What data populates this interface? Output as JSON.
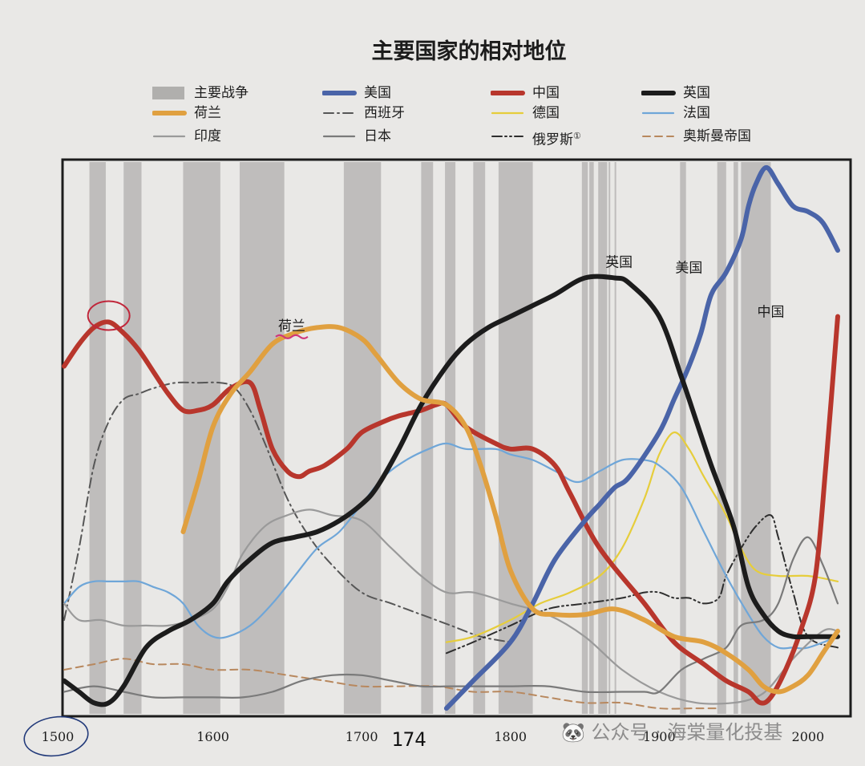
{
  "chart_data": {
    "type": "line",
    "title": "主要国家的相对地位",
    "xlim": [
      1500,
      2020
    ],
    "ylim": [
      0,
      1
    ],
    "x_ticks": [
      1500,
      1600,
      1700,
      1800,
      1900,
      2000
    ],
    "handwritten_note": "174",
    "war_periods": [
      [
        1517,
        1528
      ],
      [
        1540,
        1552
      ],
      [
        1580,
        1605
      ],
      [
        1618,
        1648
      ],
      [
        1688,
        1713
      ],
      [
        1740,
        1748
      ],
      [
        1756,
        1763
      ],
      [
        1775,
        1783
      ],
      [
        1792,
        1815
      ],
      [
        1848,
        1852
      ],
      [
        1853,
        1856
      ],
      [
        1859,
        1861
      ],
      [
        1861,
        1865
      ],
      [
        1866,
        1867
      ],
      [
        1870,
        1871
      ],
      [
        1914,
        1918
      ],
      [
        1939,
        1945
      ],
      [
        1950,
        1953
      ],
      [
        1955,
        1975
      ]
    ],
    "legend": [
      {
        "key": "wars",
        "label": "主要战争",
        "style": "band"
      },
      {
        "key": "us",
        "label": "美国",
        "style": "solid-thick"
      },
      {
        "key": "china",
        "label": "中国",
        "style": "solid-thick"
      },
      {
        "key": "uk",
        "label": "英国",
        "style": "solid-thick"
      },
      {
        "key": "netherlands",
        "label": "荷兰",
        "style": "solid-thick"
      },
      {
        "key": "spain",
        "label": "西班牙",
        "style": "dashdot"
      },
      {
        "key": "germany",
        "label": "德国",
        "style": "solid"
      },
      {
        "key": "france",
        "label": "法国",
        "style": "solid"
      },
      {
        "key": "india",
        "label": "印度",
        "style": "solid"
      },
      {
        "key": "japan",
        "label": "日本",
        "style": "solid"
      },
      {
        "key": "russia",
        "label": "俄罗斯",
        "label_note": "①",
        "style": "dashdotdot"
      },
      {
        "key": "ottoman",
        "label": "奥斯曼帝国",
        "style": "dashed"
      }
    ],
    "series": [
      {
        "key": "china",
        "name": "中国",
        "color": "#b8362c",
        "width": 6,
        "dash": "",
        "inline_label": "中国",
        "label_x": 1975,
        "label_y": 0.72,
        "x": [
          1500,
          1510,
          1520,
          1530,
          1540,
          1550,
          1560,
          1570,
          1580,
          1590,
          1600,
          1612,
          1625,
          1632,
          1640,
          1650,
          1658,
          1665,
          1675,
          1690,
          1700,
          1715,
          1725,
          1740,
          1750,
          1757,
          1770,
          1790,
          1800,
          1815,
          1830,
          1840,
          1860,
          1890,
          1910,
          1930,
          1945,
          1960,
          1968,
          1975,
          1985,
          1995,
          2005,
          2012,
          2020
        ],
        "y": [
          0.63,
          0.67,
          0.7,
          0.71,
          0.69,
          0.66,
          0.62,
          0.58,
          0.55,
          0.55,
          0.56,
          0.59,
          0.6,
          0.55,
          0.48,
          0.44,
          0.43,
          0.44,
          0.45,
          0.48,
          0.51,
          0.53,
          0.54,
          0.55,
          0.56,
          0.56,
          0.52,
          0.49,
          0.48,
          0.48,
          0.45,
          0.4,
          0.3,
          0.2,
          0.13,
          0.09,
          0.06,
          0.04,
          0.02,
          0.03,
          0.08,
          0.15,
          0.25,
          0.45,
          0.72
        ]
      },
      {
        "key": "us",
        "name": "美国",
        "color": "#4a64a8",
        "width": 6,
        "dash": "",
        "inline_label": "美国",
        "label_x": 1920,
        "label_y": 0.8,
        "x": [
          1757,
          1775,
          1800,
          1815,
          1830,
          1850,
          1860,
          1870,
          1880,
          1900,
          1910,
          1920,
          1928,
          1935,
          1945,
          1955,
          1960,
          1965,
          1972,
          1980,
          1990,
          2000,
          2010,
          2020
        ],
        "y": [
          0.01,
          0.06,
          0.13,
          0.2,
          0.28,
          0.35,
          0.38,
          0.41,
          0.43,
          0.51,
          0.57,
          0.63,
          0.69,
          0.76,
          0.8,
          0.86,
          0.92,
          0.96,
          0.99,
          0.96,
          0.92,
          0.91,
          0.89,
          0.84
        ]
      },
      {
        "key": "uk",
        "name": "英国",
        "color": "#1c1c1c",
        "width": 6,
        "dash": "",
        "inline_label": "英国",
        "label_x": 1873,
        "label_y": 0.81,
        "x": [
          1500,
          1510,
          1520,
          1530,
          1540,
          1555,
          1570,
          1585,
          1600,
          1610,
          1625,
          1640,
          1655,
          1670,
          1685,
          1700,
          1710,
          1725,
          1740,
          1757,
          1770,
          1785,
          1800,
          1815,
          1830,
          1850,
          1870,
          1880,
          1900,
          1915,
          1925,
          1935,
          1950,
          1960,
          1970,
          1980,
          1990,
          2000,
          2020
        ],
        "y": [
          0.06,
          0.04,
          0.02,
          0.02,
          0.05,
          0.12,
          0.15,
          0.17,
          0.2,
          0.24,
          0.28,
          0.31,
          0.32,
          0.33,
          0.35,
          0.38,
          0.41,
          0.48,
          0.56,
          0.63,
          0.67,
          0.7,
          0.72,
          0.74,
          0.76,
          0.79,
          0.79,
          0.78,
          0.72,
          0.61,
          0.53,
          0.45,
          0.34,
          0.23,
          0.18,
          0.15,
          0.14,
          0.14,
          0.14
        ]
      },
      {
        "key": "netherlands",
        "name": "荷兰",
        "color": "#e0a040",
        "width": 6,
        "dash": "",
        "inline_label": "荷兰",
        "label_x": 1653,
        "label_y": 0.695,
        "x": [
          1580,
          1590,
          1600,
          1612,
          1625,
          1640,
          1655,
          1670,
          1685,
          1700,
          1710,
          1725,
          1740,
          1757,
          1770,
          1780,
          1790,
          1800,
          1815,
          1830,
          1850,
          1870,
          1890,
          1910,
          1930,
          1945,
          1960,
          1970,
          1980,
          1990,
          2000,
          2010,
          2020
        ],
        "y": [
          0.33,
          0.42,
          0.52,
          0.58,
          0.62,
          0.67,
          0.69,
          0.7,
          0.7,
          0.68,
          0.65,
          0.6,
          0.57,
          0.56,
          0.52,
          0.45,
          0.36,
          0.26,
          0.19,
          0.18,
          0.18,
          0.19,
          0.17,
          0.14,
          0.13,
          0.11,
          0.08,
          0.05,
          0.04,
          0.05,
          0.07,
          0.11,
          0.15
        ]
      },
      {
        "key": "spain",
        "name": "西班牙",
        "color": "#565656",
        "width": 2,
        "dash": "12 5 2 5",
        "x": [
          1500,
          1510,
          1520,
          1530,
          1540,
          1550,
          1560,
          1575,
          1590,
          1605,
          1615,
          1625,
          1635,
          1650,
          1665,
          1680,
          1700,
          1720,
          1740,
          1760,
          1780,
          1800
        ],
        "y": [
          0.17,
          0.3,
          0.45,
          0.53,
          0.57,
          0.58,
          0.59,
          0.6,
          0.6,
          0.6,
          0.59,
          0.55,
          0.49,
          0.39,
          0.32,
          0.27,
          0.22,
          0.2,
          0.18,
          0.16,
          0.14,
          0.13
        ]
      },
      {
        "key": "germany",
        "name": "德国",
        "color": "#e6cd3b",
        "width": 2.2,
        "dash": "",
        "x": [
          1757,
          1775,
          1800,
          1820,
          1840,
          1860,
          1875,
          1890,
          1900,
          1910,
          1920,
          1930,
          1945,
          1955,
          1965,
          1980,
          2000,
          2020
        ],
        "y": [
          0.13,
          0.14,
          0.17,
          0.2,
          0.22,
          0.25,
          0.3,
          0.39,
          0.47,
          0.51,
          0.48,
          0.43,
          0.36,
          0.3,
          0.26,
          0.25,
          0.25,
          0.24
        ]
      },
      {
        "key": "france",
        "name": "法国",
        "color": "#6fa6d8",
        "width": 2.2,
        "dash": "",
        "x": [
          1500,
          1510,
          1520,
          1530,
          1540,
          1550,
          1560,
          1570,
          1580,
          1590,
          1600,
          1610,
          1625,
          1640,
          1655,
          1670,
          1685,
          1700,
          1715,
          1730,
          1745,
          1757,
          1770,
          1790,
          1800,
          1815,
          1830,
          1845,
          1860,
          1875,
          1890,
          1900,
          1915,
          1930,
          1945,
          1960,
          1970,
          1980,
          1990,
          2000,
          2020
        ],
        "y": [
          0.2,
          0.23,
          0.24,
          0.24,
          0.24,
          0.24,
          0.23,
          0.22,
          0.2,
          0.16,
          0.14,
          0.14,
          0.16,
          0.2,
          0.25,
          0.3,
          0.33,
          0.38,
          0.43,
          0.46,
          0.48,
          0.49,
          0.48,
          0.48,
          0.47,
          0.46,
          0.44,
          0.42,
          0.44,
          0.46,
          0.46,
          0.45,
          0.41,
          0.33,
          0.25,
          0.18,
          0.14,
          0.12,
          0.12,
          0.12,
          0.14
        ]
      },
      {
        "key": "india",
        "name": "印度",
        "color": "#9a9a9a",
        "width": 2.2,
        "dash": "",
        "x": [
          1500,
          1510,
          1525,
          1540,
          1555,
          1570,
          1585,
          1600,
          1610,
          1620,
          1635,
          1650,
          1665,
          1680,
          1700,
          1720,
          1740,
          1757,
          1775,
          1800,
          1825,
          1850,
          1875,
          1900,
          1925,
          1950,
          1965,
          1975,
          1990,
          2010,
          2020
        ],
        "y": [
          0.2,
          0.17,
          0.17,
          0.16,
          0.16,
          0.16,
          0.17,
          0.19,
          0.23,
          0.29,
          0.34,
          0.36,
          0.37,
          0.36,
          0.35,
          0.3,
          0.25,
          0.22,
          0.22,
          0.2,
          0.18,
          0.14,
          0.08,
          0.04,
          0.02,
          0.02,
          0.03,
          0.05,
          0.1,
          0.15,
          0.15
        ]
      },
      {
        "key": "japan",
        "name": "日本",
        "color": "#7a7a7a",
        "width": 2.2,
        "dash": "",
        "x": [
          1500,
          1520,
          1540,
          1560,
          1580,
          1600,
          1620,
          1640,
          1660,
          1680,
          1700,
          1720,
          1740,
          1760,
          1780,
          1800,
          1825,
          1850,
          1875,
          1890,
          1900,
          1915,
          1930,
          1945,
          1955,
          1970,
          1980,
          1990,
          2000,
          2010,
          2020
        ],
        "y": [
          0.04,
          0.05,
          0.04,
          0.03,
          0.03,
          0.03,
          0.03,
          0.04,
          0.06,
          0.07,
          0.07,
          0.06,
          0.05,
          0.05,
          0.05,
          0.05,
          0.05,
          0.04,
          0.04,
          0.04,
          0.04,
          0.08,
          0.1,
          0.12,
          0.16,
          0.17,
          0.2,
          0.28,
          0.32,
          0.27,
          0.2
        ]
      },
      {
        "key": "russia",
        "name": "俄罗斯",
        "color": "#2e2e2e",
        "width": 2,
        "dash": "12 4 2 4 2 4",
        "x": [
          1757,
          1775,
          1800,
          1825,
          1850,
          1875,
          1890,
          1900,
          1910,
          1920,
          1930,
          1940,
          1945,
          1955,
          1965,
          1975,
          1980,
          1990,
          2000,
          2020
        ],
        "y": [
          0.11,
          0.13,
          0.16,
          0.19,
          0.2,
          0.21,
          0.22,
          0.22,
          0.21,
          0.21,
          0.2,
          0.21,
          0.25,
          0.3,
          0.34,
          0.36,
          0.32,
          0.22,
          0.14,
          0.12
        ]
      },
      {
        "key": "ottoman",
        "name": "奥斯曼帝国",
        "color": "#b8885e",
        "width": 2,
        "dash": "9 6",
        "x": [
          1500,
          1520,
          1540,
          1560,
          1580,
          1600,
          1625,
          1650,
          1675,
          1700,
          1725,
          1750,
          1775,
          1800,
          1825,
          1850,
          1875,
          1900,
          1925,
          1940
        ],
        "y": [
          0.08,
          0.09,
          0.1,
          0.09,
          0.09,
          0.08,
          0.08,
          0.07,
          0.06,
          0.05,
          0.05,
          0.05,
          0.04,
          0.04,
          0.03,
          0.02,
          0.02,
          0.01,
          0.01,
          0.01
        ]
      }
    ]
  }
}
